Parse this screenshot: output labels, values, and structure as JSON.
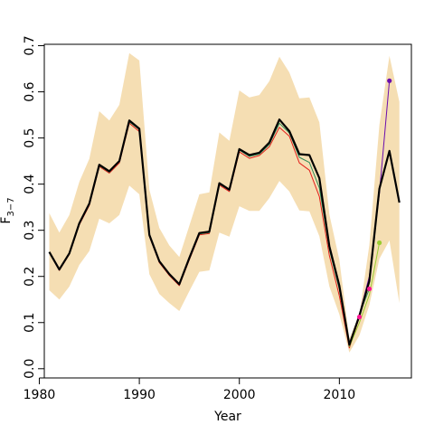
{
  "chart_data": {
    "type": "line",
    "title": "",
    "xlabel": "Year",
    "ylabel": "F",
    "ylabel_subscript": "3−7",
    "xlim": [
      1980.5,
      2017.2
    ],
    "ylim": [
      -0.02,
      0.703
    ],
    "x_ticks": [
      1980,
      1990,
      2000,
      2010
    ],
    "y_ticks": [
      0.0,
      0.1,
      0.2,
      0.3,
      0.4,
      0.5,
      0.6,
      0.7
    ],
    "x_tick_labels": [
      "1980",
      "1990",
      "2000",
      "2010"
    ],
    "y_tick_labels": [
      "0.0",
      "0.1",
      "0.2",
      "0.3",
      "0.4",
      "0.5",
      "0.6",
      "0.7"
    ],
    "grid": false,
    "legend": false,
    "band": {
      "color": "#f5deb3",
      "x": [
        1981,
        1982,
        1983,
        1984,
        1985,
        1986,
        1987,
        1988,
        1989,
        1990,
        1991,
        1992,
        1993,
        1994,
        1995,
        1996,
        1997,
        1998,
        1999,
        2000,
        2001,
        2002,
        2003,
        2004,
        2005,
        2006,
        2007,
        2008,
        2009,
        2010,
        2011,
        2012,
        2013,
        2014,
        2015,
        2016
      ],
      "upper": [
        0.337,
        0.295,
        0.333,
        0.405,
        0.455,
        0.558,
        0.538,
        0.572,
        0.684,
        0.668,
        0.388,
        0.305,
        0.267,
        0.242,
        0.31,
        0.378,
        0.382,
        0.512,
        0.494,
        0.603,
        0.588,
        0.593,
        0.623,
        0.676,
        0.642,
        0.586,
        0.588,
        0.534,
        0.334,
        0.236,
        0.065,
        0.118,
        0.268,
        0.528,
        0.678,
        0.578
      ],
      "lower": [
        0.17,
        0.15,
        0.178,
        0.225,
        0.255,
        0.325,
        0.315,
        0.333,
        0.397,
        0.378,
        0.205,
        0.162,
        0.142,
        0.125,
        0.168,
        0.21,
        0.213,
        0.295,
        0.286,
        0.352,
        0.342,
        0.342,
        0.37,
        0.407,
        0.384,
        0.343,
        0.341,
        0.287,
        0.178,
        0.118,
        0.035,
        0.072,
        0.138,
        0.238,
        0.278,
        0.142
      ]
    },
    "series": [
      {
        "color": "#e3201b",
        "x": [
          1981,
          1982,
          1983,
          1984,
          1985,
          1986,
          1987,
          1988,
          1989,
          1990,
          1991,
          1992,
          1993,
          1994,
          1995,
          1996,
          1997,
          1998,
          1999,
          2000,
          2001,
          2002,
          2003,
          2004,
          2005,
          2006,
          2007,
          2008,
          2009,
          2010,
          2011,
          2012
        ],
        "y": [
          0.252,
          0.213,
          0.248,
          0.312,
          0.354,
          0.438,
          0.424,
          0.446,
          0.532,
          0.514,
          0.287,
          0.23,
          0.202,
          0.18,
          0.236,
          0.29,
          0.293,
          0.398,
          0.384,
          0.47,
          0.456,
          0.462,
          0.481,
          0.523,
          0.504,
          0.446,
          0.43,
          0.373,
          0.245,
          0.158,
          0.045,
          0.112
        ],
        "end_marker_color": "#ff1493"
      },
      {
        "color": "#2e8b57",
        "x": [
          1981,
          1982,
          1983,
          1984,
          1985,
          1986,
          1987,
          1988,
          1989,
          1990,
          1991,
          1992,
          1993,
          1994,
          1995,
          1996,
          1997,
          1998,
          1999,
          2000,
          2001,
          2002,
          2003,
          2004,
          2005,
          2006,
          2007,
          2008,
          2009,
          2010,
          2011,
          2012,
          2013
        ],
        "y": [
          0.253,
          0.214,
          0.249,
          0.314,
          0.356,
          0.44,
          0.426,
          0.449,
          0.535,
          0.518,
          0.289,
          0.232,
          0.204,
          0.182,
          0.238,
          0.292,
          0.295,
          0.4,
          0.387,
          0.474,
          0.46,
          0.465,
          0.486,
          0.532,
          0.511,
          0.458,
          0.447,
          0.392,
          0.258,
          0.172,
          0.048,
          0.118,
          0.173
        ],
        "end_marker_color": "#ff1493"
      },
      {
        "color": "#9acd32",
        "x": [
          2011,
          2012,
          2013,
          2014
        ],
        "y": [
          0.048,
          0.1,
          0.16,
          0.273
        ],
        "end_marker_color": "#9acd32"
      },
      {
        "color": "#6a0dad",
        "x": [
          2012,
          2013,
          2014,
          2015
        ],
        "y": [
          0.118,
          0.2,
          0.38,
          0.624
        ],
        "end_marker_color": "#6a0dad"
      },
      {
        "color": "#000000",
        "x": [
          1981,
          1982,
          1983,
          1984,
          1985,
          1986,
          1987,
          1988,
          1989,
          1990,
          1991,
          1992,
          1993,
          1994,
          1995,
          1996,
          1997,
          1998,
          1999,
          2000,
          2001,
          2002,
          2003,
          2004,
          2005,
          2006,
          2007,
          2008,
          2009,
          2010,
          2011,
          2012,
          2013,
          2014,
          2015,
          2016
        ],
        "y": [
          0.253,
          0.215,
          0.25,
          0.315,
          0.358,
          0.442,
          0.428,
          0.45,
          0.538,
          0.52,
          0.29,
          0.233,
          0.205,
          0.183,
          0.24,
          0.294,
          0.297,
          0.402,
          0.388,
          0.476,
          0.463,
          0.468,
          0.49,
          0.54,
          0.515,
          0.465,
          0.463,
          0.413,
          0.265,
          0.18,
          0.052,
          0.115,
          0.19,
          0.39,
          0.472,
          0.36
        ],
        "bold": true
      }
    ]
  }
}
